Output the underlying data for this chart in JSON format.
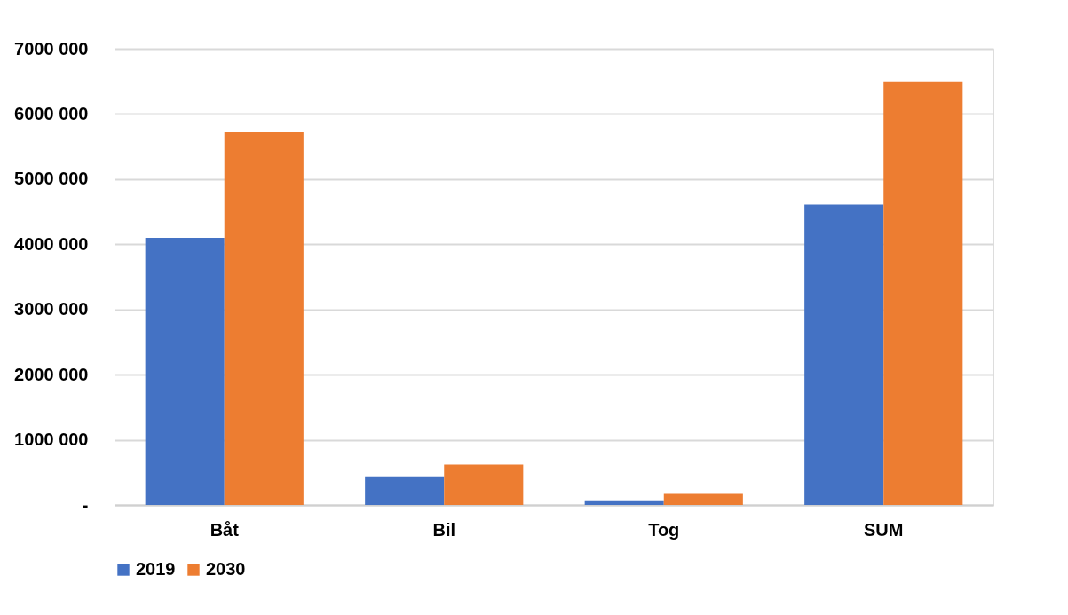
{
  "chart_data": {
    "type": "bar",
    "categories": [
      "Båt",
      "Bil",
      "Tog",
      "SUM"
    ],
    "series": [
      {
        "name": "2019",
        "color": "#4472c4",
        "values": [
          4100000,
          440000,
          70000,
          4610000
        ]
      },
      {
        "name": "2030",
        "color": "#ed7d31",
        "values": [
          5720000,
          620000,
          170000,
          6500000
        ]
      }
    ],
    "ylim": [
      0,
      7000000
    ],
    "yticks": [
      {
        "value": 0,
        "label": "-"
      },
      {
        "value": 1000000,
        "label": "1000 000"
      },
      {
        "value": 2000000,
        "label": "2000 000"
      },
      {
        "value": 3000000,
        "label": "3000 000"
      },
      {
        "value": 4000000,
        "label": "4000 000"
      },
      {
        "value": 5000000,
        "label": "5000 000"
      },
      {
        "value": 6000000,
        "label": "6000 000"
      },
      {
        "value": 7000000,
        "label": "7000 000"
      }
    ],
    "grid": "y",
    "legend": "bottom"
  }
}
